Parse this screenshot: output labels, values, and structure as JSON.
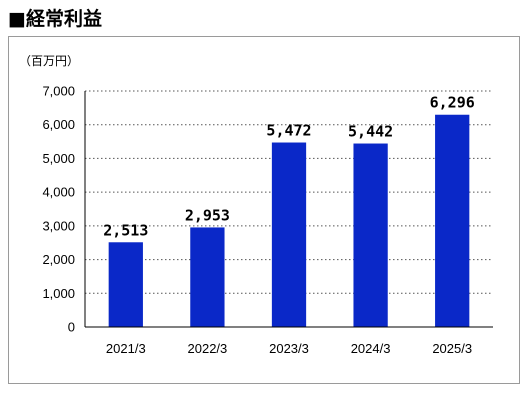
{
  "heading": "■経常利益",
  "chart_data": {
    "type": "bar",
    "unit_label": "（百万円）",
    "categories": [
      "2021/3",
      "2022/3",
      "2023/3",
      "2024/3",
      "2025/3"
    ],
    "values": [
      2513,
      2953,
      5472,
      5442,
      6296
    ],
    "data_labels": [
      "2,513",
      "2,953",
      "5,472",
      "5,442",
      "6,296"
    ],
    "ylim": [
      0,
      7000
    ],
    "y_ticks": [
      0,
      1000,
      2000,
      3000,
      4000,
      5000,
      6000,
      7000
    ],
    "y_tick_labels": [
      "0",
      "1,000",
      "2,000",
      "3,000",
      "4,000",
      "5,000",
      "6,000",
      "7,000"
    ],
    "grid": true,
    "grid_style": "dotted",
    "bar_color": "#0a28c8"
  }
}
